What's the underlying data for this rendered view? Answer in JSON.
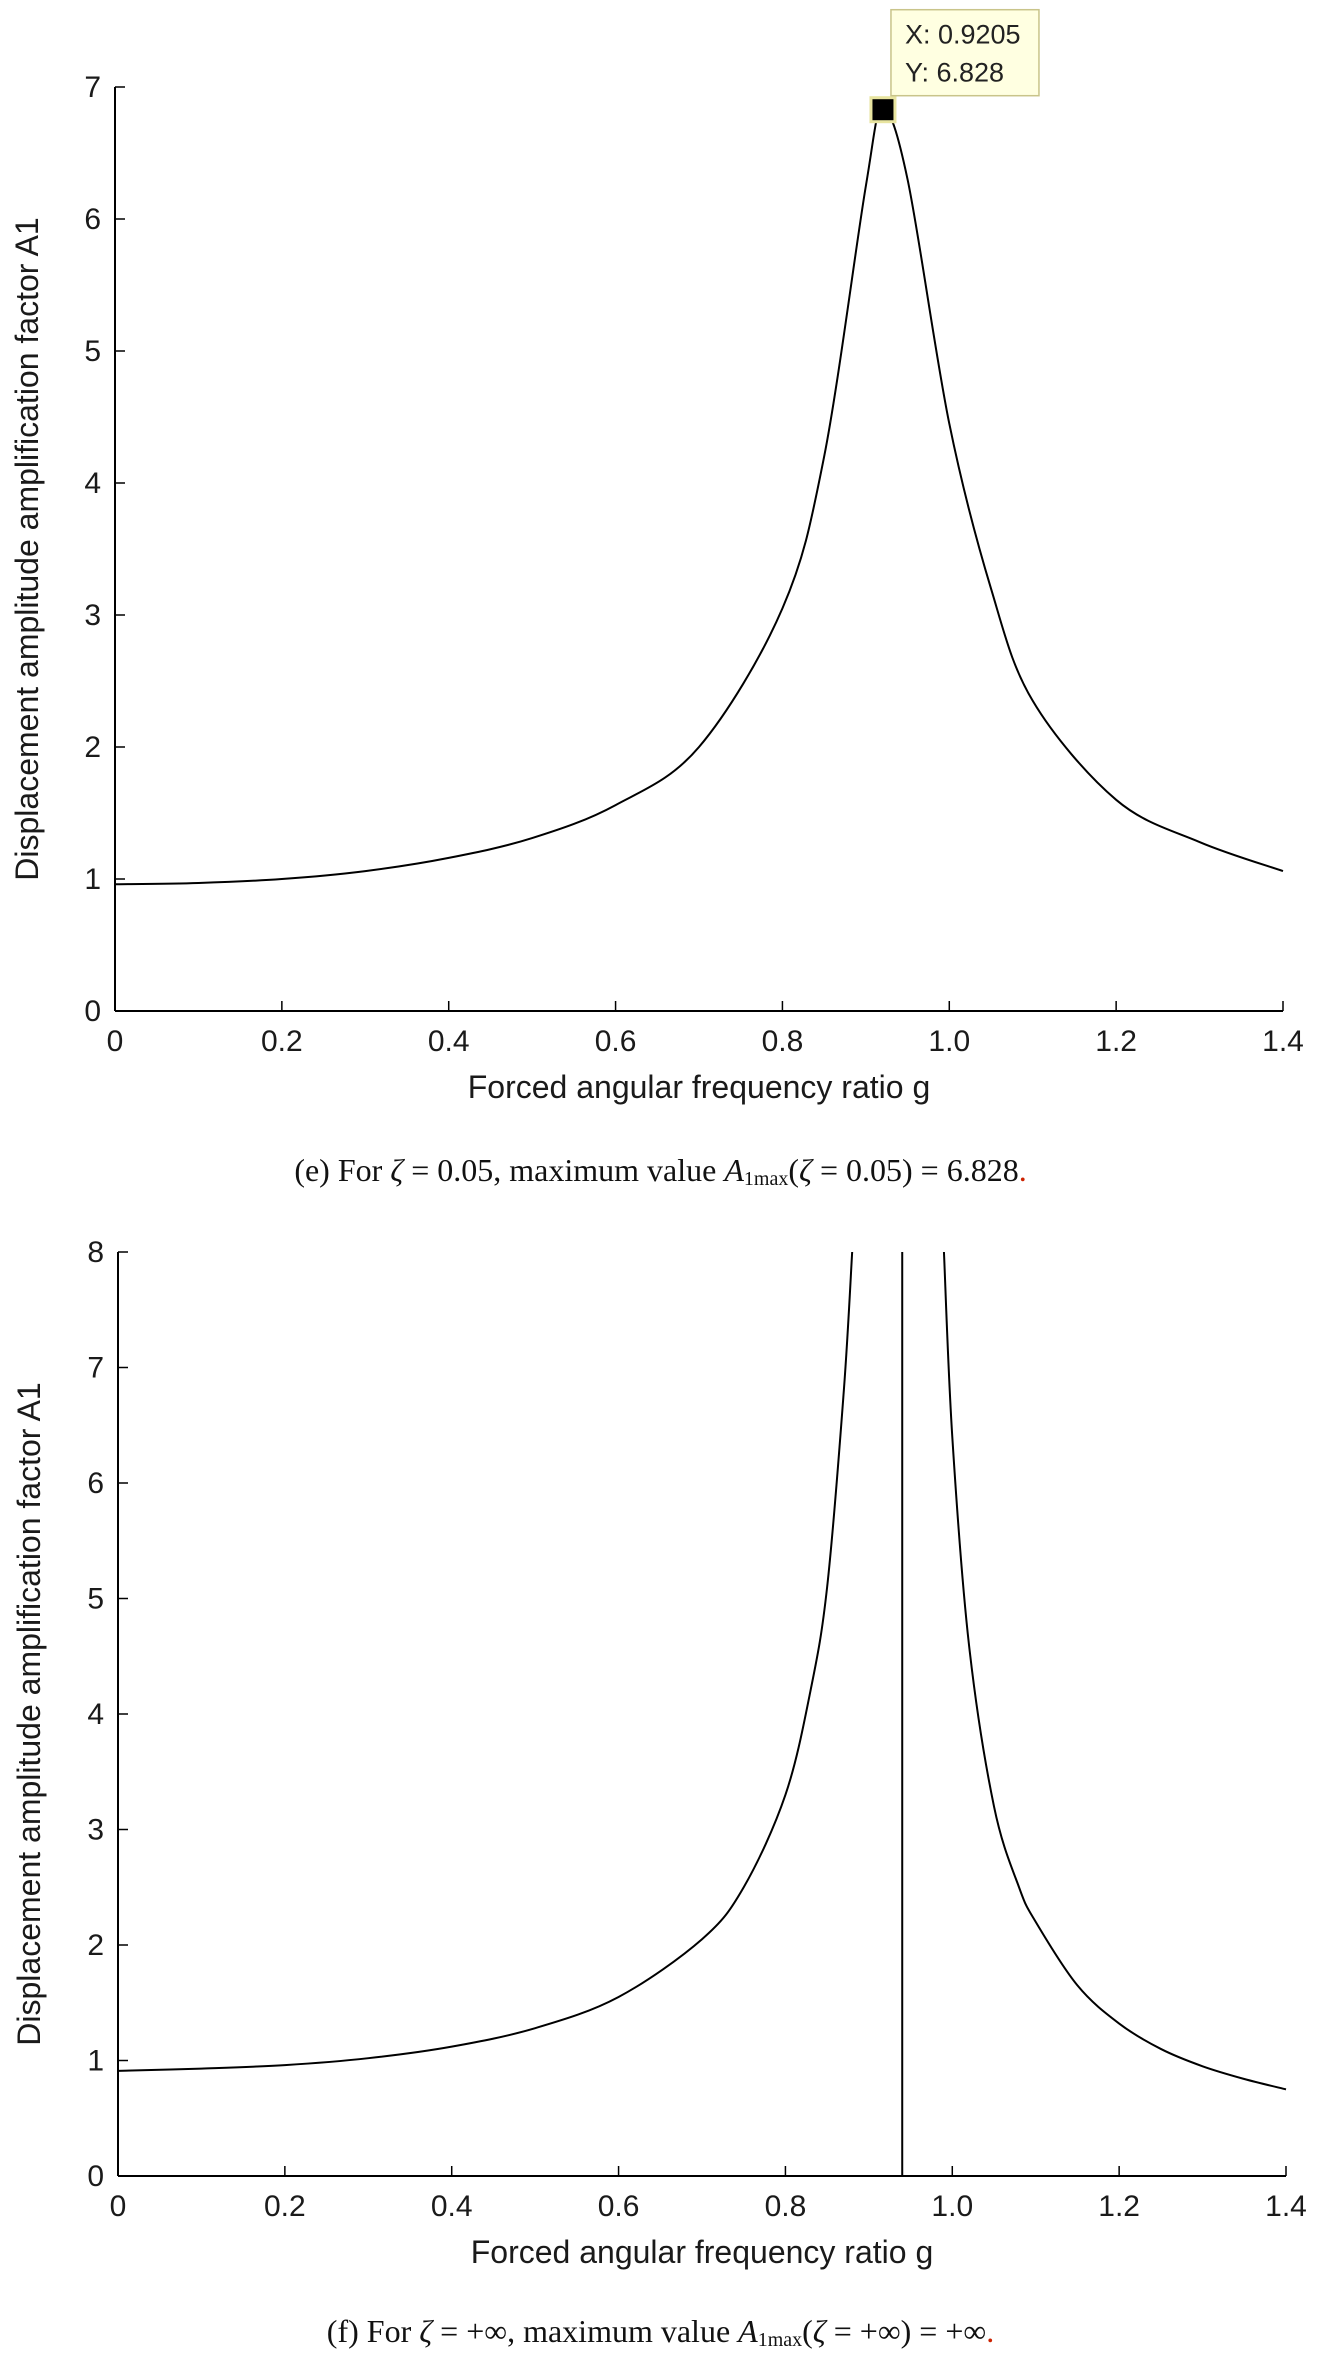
{
  "chart_data": [
    {
      "type": "line",
      "panel": "e",
      "zeta": 0.05,
      "xlabel": "Forced angular frequency ratio g",
      "ylabel": "Displacement amplitude amplification factor A1",
      "xlim": [
        0,
        1.4
      ],
      "ylim": [
        0,
        7
      ],
      "xticks": [
        "0",
        "0.2",
        "0.4",
        "0.6",
        "0.8",
        "1.0",
        "1.2",
        "1.4"
      ],
      "yticks": [
        "0",
        "1",
        "2",
        "3",
        "4",
        "5",
        "6",
        "7"
      ],
      "grid": false,
      "series": [
        {
          "x": [
            0,
            0.1,
            0.2,
            0.3,
            0.4,
            0.5,
            0.6,
            0.7,
            0.8,
            0.85,
            0.9,
            0.92,
            0.95,
            1.0,
            1.05,
            1.1,
            1.2,
            1.3,
            1.4
          ],
          "y": [
            0.96,
            0.97,
            1.0,
            1.06,
            1.16,
            1.31,
            1.56,
            2.0,
            3.05,
            4.2,
            6.25,
            6.83,
            6.3,
            4.45,
            3.2,
            2.35,
            1.6,
            1.28,
            1.06
          ]
        }
      ],
      "datatip": {
        "x_label": "X: 0.9205",
        "y_label": "Y: 6.828",
        "x": 0.9205,
        "y": 6.828
      },
      "caption": {
        "prefix": "(e) For ",
        "zeta_sym": "ζ",
        "mid1": " = 0.05, maximum value ",
        "A": "A",
        "sub": "1max",
        "mid2": "(",
        "mid3": " = 0.05) = 6.828",
        "end": "."
      }
    },
    {
      "type": "line",
      "panel": "f",
      "zeta": "+∞",
      "xlabel": "Forced angular frequency ratio g",
      "ylabel": "Displacement amplitude amplification factor A1",
      "xlim": [
        0,
        1.4
      ],
      "ylim": [
        0,
        8
      ],
      "xticks": [
        "0",
        "0.2",
        "0.4",
        "0.6",
        "0.8",
        "1.0",
        "1.2",
        "1.4"
      ],
      "yticks": [
        "0",
        "1",
        "2",
        "3",
        "4",
        "5",
        "6",
        "7",
        "8"
      ],
      "grid": false,
      "asymptote_x": 0.94,
      "series": [
        {
          "x": [
            0,
            0.1,
            0.2,
            0.3,
            0.4,
            0.5,
            0.6,
            0.7,
            0.75,
            0.8,
            0.83,
            0.85,
            0.87,
            0.88
          ],
          "y": [
            0.91,
            0.93,
            0.96,
            1.02,
            1.12,
            1.28,
            1.55,
            2.05,
            2.5,
            3.3,
            4.2,
            5.1,
            6.8,
            8.0
          ]
        },
        {
          "x": [
            0.99,
            1.0,
            1.02,
            1.05,
            1.08,
            1.1,
            1.15,
            1.2,
            1.25,
            1.3,
            1.35,
            1.4
          ],
          "y": [
            8.0,
            6.4,
            4.6,
            3.2,
            2.5,
            2.2,
            1.65,
            1.32,
            1.1,
            0.95,
            0.84,
            0.75
          ]
        }
      ],
      "caption": {
        "prefix": "(f) For ",
        "zeta_sym": "ζ",
        "mid1": " = +∞, maximum value ",
        "A": "A",
        "sub": "1max",
        "mid2": "(",
        "mid3": " = +∞) = +∞",
        "end": "."
      }
    }
  ]
}
